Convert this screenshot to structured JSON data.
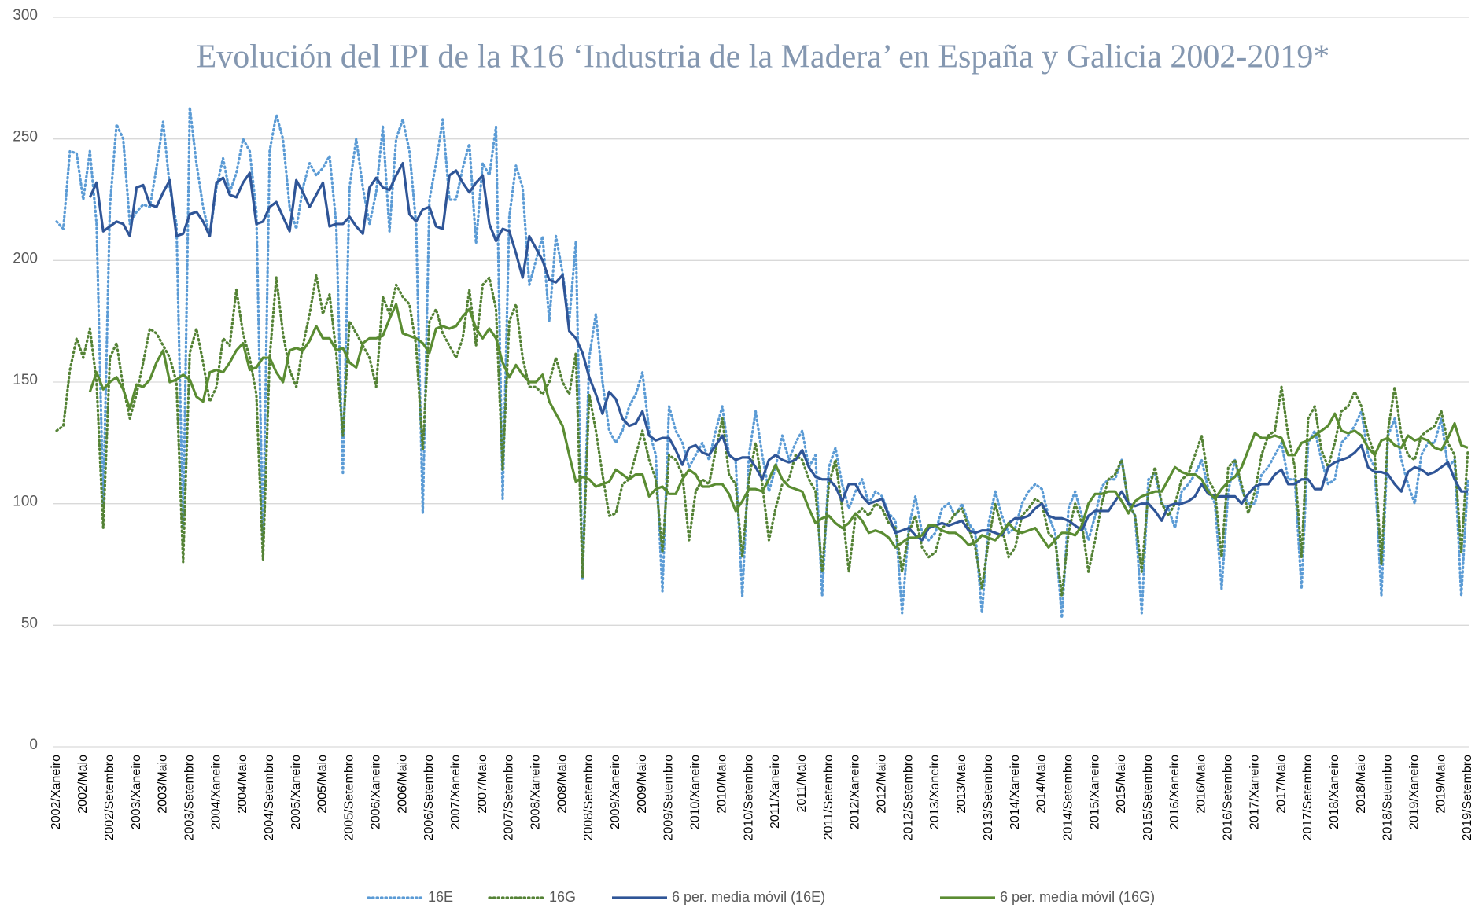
{
  "chart_data": {
    "type": "line",
    "title": "Evolución del IPI de la R16 ‘Industria de la Madera’ en España y Galicia 2002-2019*",
    "categories": [
      "2002/Xaneiro",
      null,
      null,
      null,
      "2002/Maio",
      null,
      null,
      null,
      "2002/Setembro",
      null,
      null,
      null,
      "2003/Xaneiro",
      null,
      null,
      null,
      "2003/Maio",
      null,
      null,
      null,
      "2003/Setembro",
      null,
      null,
      null,
      "2004/Xaneiro",
      null,
      null,
      null,
      "2004/Maio",
      null,
      null,
      null,
      "2004/Setembro",
      null,
      null,
      null,
      "2005/Xaneiro",
      null,
      null,
      null,
      "2005/Maio",
      null,
      null,
      null,
      "2005/Setembro",
      null,
      null,
      null,
      "2006/Xaneiro",
      null,
      null,
      null,
      "2006/Maio",
      null,
      null,
      null,
      "2006/Setembro",
      null,
      null,
      null,
      "2007/Xaneiro",
      null,
      null,
      null,
      "2007/Maio",
      null,
      null,
      null,
      "2007/Setembro",
      null,
      null,
      null,
      "2008/Xaneiro",
      null,
      null,
      null,
      "2008/Maio",
      null,
      null,
      null,
      "2008/Setembro",
      null,
      null,
      null,
      "2009/Xaneiro",
      null,
      null,
      null,
      "2009/Maio",
      null,
      null,
      null,
      "2009/Setembro",
      null,
      null,
      null,
      "2010/Xaneiro",
      null,
      null,
      null,
      "2010/Maio",
      null,
      null,
      null,
      "2010/Setembro",
      null,
      null,
      null,
      "2011/Xaneiro",
      null,
      null,
      null,
      "2011/Maio",
      null,
      null,
      null,
      "2011/Setembro",
      null,
      null,
      null,
      "2012/Xaneiro",
      null,
      null,
      null,
      "2012/Maio",
      null,
      null,
      null,
      "2012/Setembro",
      null,
      null,
      null,
      "2013/Xaneiro",
      null,
      null,
      null,
      "2013/Maio",
      null,
      null,
      null,
      "2013/Setembro",
      null,
      null,
      null,
      "2014/Xaneiro",
      null,
      null,
      null,
      "2014/Maio",
      null,
      null,
      null,
      "2014/Setembro",
      null,
      null,
      null,
      "2015/Xaneiro",
      null,
      null,
      null,
      "2015/Maio",
      null,
      null,
      null,
      "2015/Setembro",
      null,
      null,
      null,
      "2016/Xaneiro",
      null,
      null,
      null,
      "2016/Maio",
      null,
      null,
      null,
      "2016/Setembro",
      null,
      null,
      null,
      "2017/Xaneiro",
      null,
      null,
      null,
      "2017/Maio",
      null,
      null,
      null,
      "2017/Setembro",
      null,
      null,
      null,
      "2018/Xaneiro",
      null,
      null,
      null,
      "2018/Maio",
      null,
      null,
      null,
      "2018/Setembro",
      null,
      null,
      null,
      "2019/Xaneiro",
      null,
      null,
      null,
      "2019/Maio",
      null,
      null,
      null,
      "2019/Setembro"
    ],
    "series": [
      {
        "name": "16E",
        "color": "#5b9bd5",
        "style": "dotted",
        "values": [
          216,
          213,
          245,
          244,
          225,
          245,
          215,
          100,
          222,
          256,
          250,
          215,
          220,
          223,
          222,
          238,
          257,
          230,
          215,
          90,
          263,
          240,
          222,
          210,
          230,
          242,
          228,
          236,
          250,
          245,
          220,
          85,
          245,
          260,
          250,
          222,
          213,
          230,
          240,
          235,
          238,
          243,
          215,
          112,
          230,
          250,
          230,
          215,
          228,
          255,
          212,
          250,
          258,
          245,
          215,
          96,
          225,
          240,
          258,
          225,
          225,
          238,
          248,
          207,
          240,
          235,
          255,
          102,
          218,
          239,
          230,
          190,
          200,
          210,
          175,
          210,
          195,
          175,
          208,
          69,
          160,
          178,
          150,
          130,
          125,
          130,
          140,
          145,
          154,
          130,
          120,
          64,
          140,
          130,
          125,
          115,
          120,
          125,
          118,
          130,
          140,
          120,
          118,
          62,
          120,
          138,
          120,
          105,
          115,
          128,
          118,
          125,
          130,
          115,
          120,
          62,
          115,
          123,
          108,
          98,
          105,
          110,
          100,
          105,
          103,
          96,
          93,
          55,
          90,
          103,
          88,
          85,
          88,
          98,
          100,
          95,
          100,
          92,
          88,
          55,
          92,
          105,
          95,
          88,
          90,
          100,
          105,
          108,
          106,
          95,
          88,
          53,
          98,
          105,
          95,
          85,
          95,
          107,
          110,
          110,
          118,
          100,
          95,
          55,
          110,
          112,
          100,
          98,
          90,
          105,
          108,
          112,
          118,
          106,
          100,
          65,
          105,
          118,
          106,
          100,
          100,
          112,
          115,
          120,
          125,
          110,
          110,
          65,
          125,
          130,
          118,
          108,
          110,
          125,
          128,
          132,
          138,
          120,
          115,
          62,
          128,
          135,
          118,
          108,
          100,
          120,
          125,
          125,
          135,
          115,
          118,
          62,
          110
        ]
      },
      {
        "name": "16G",
        "color": "#548235",
        "style": "dotted",
        "values": [
          130,
          132,
          155,
          168,
          160,
          172,
          150,
          90,
          160,
          166,
          148,
          135,
          145,
          158,
          172,
          170,
          165,
          160,
          150,
          76,
          162,
          172,
          158,
          142,
          148,
          168,
          165,
          188,
          170,
          160,
          145,
          77,
          160,
          193,
          170,
          155,
          148,
          165,
          178,
          194,
          178,
          186,
          162,
          128,
          175,
          170,
          165,
          160,
          148,
          185,
          178,
          190,
          185,
          182,
          165,
          122,
          175,
          180,
          170,
          165,
          160,
          168,
          188,
          165,
          190,
          193,
          180,
          114,
          175,
          182,
          160,
          148,
          148,
          145,
          150,
          160,
          150,
          145,
          162,
          70,
          145,
          130,
          112,
          95,
          96,
          108,
          110,
          120,
          130,
          118,
          110,
          80,
          120,
          118,
          112,
          85,
          105,
          110,
          108,
          122,
          135,
          112,
          108,
          78,
          110,
          125,
          108,
          85,
          98,
          108,
          110,
          120,
          118,
          110,
          105,
          72,
          108,
          118,
          98,
          72,
          95,
          98,
          95,
          100,
          98,
          92,
          90,
          72,
          88,
          95,
          82,
          78,
          80,
          90,
          92,
          96,
          98,
          90,
          82,
          65,
          85,
          100,
          90,
          78,
          82,
          95,
          98,
          102,
          100,
          88,
          85,
          62,
          88,
          100,
          92,
          72,
          85,
          100,
          110,
          112,
          118,
          100,
          95,
          72,
          105,
          115,
          100,
          95,
          100,
          110,
          112,
          120,
          128,
          110,
          105,
          78,
          115,
          118,
          108,
          96,
          105,
          120,
          128,
          130,
          148,
          128,
          115,
          78,
          135,
          140,
          122,
          115,
          125,
          138,
          140,
          146,
          140,
          128,
          120,
          75,
          130,
          148,
          128,
          120,
          118,
          128,
          130,
          132,
          138,
          125,
          120,
          80,
          122
        ]
      },
      {
        "name": "6 per. media móvil (16E)",
        "color": "#2f5597",
        "style": "solid",
        "values": [
          null,
          null,
          null,
          null,
          null,
          226,
          232,
          212,
          214,
          216,
          215,
          210,
          230,
          231,
          223,
          222,
          228,
          233,
          210,
          211,
          219,
          220,
          216,
          210,
          232,
          234,
          227,
          226,
          232,
          236,
          215,
          216,
          222,
          224,
          218,
          212,
          233,
          228,
          222,
          227,
          232,
          214,
          215,
          215,
          218,
          214,
          211,
          230,
          234,
          230,
          229,
          235,
          240,
          219,
          216,
          221,
          222,
          214,
          213,
          235,
          237,
          232,
          228,
          232,
          235,
          215,
          208,
          213,
          212,
          203,
          193,
          210,
          205,
          200,
          192,
          191,
          194,
          171,
          168,
          162,
          152,
          145,
          137,
          146,
          143,
          135,
          132,
          133,
          138,
          128,
          126,
          127,
          127,
          122,
          116,
          123,
          124,
          121,
          120,
          124,
          128,
          120,
          118,
          119,
          119,
          115,
          110,
          118,
          120,
          118,
          117,
          118,
          122,
          115,
          111,
          110,
          110,
          107,
          101,
          108,
          108,
          103,
          100,
          101,
          102,
          95,
          88,
          89,
          90,
          87,
          85,
          90,
          91,
          92,
          91,
          92,
          93,
          89,
          88,
          89,
          89,
          88,
          87,
          92,
          94,
          94,
          95,
          98,
          100,
          95,
          94,
          94,
          93,
          91,
          89,
          95,
          97,
          97,
          97,
          101,
          105,
          100,
          99,
          100,
          100,
          97,
          93,
          99,
          100,
          100,
          101,
          103,
          108,
          104,
          103,
          103,
          103,
          103,
          100,
          104,
          107,
          108,
          108,
          112,
          114,
          108,
          108,
          110,
          110,
          106,
          106,
          115,
          117,
          118,
          119,
          121,
          124,
          115,
          113,
          113,
          112,
          108,
          105,
          113,
          115,
          114,
          112,
          113,
          115,
          117,
          110,
          105,
          105
        ]
      },
      {
        "name": "6 per. media móvil (16G)",
        "color": "#5a8c32",
        "style": "solid",
        "values": [
          null,
          null,
          null,
          null,
          null,
          146,
          154,
          147,
          150,
          152,
          147,
          139,
          149,
          148,
          151,
          158,
          163,
          150,
          151,
          153,
          151,
          144,
          142,
          154,
          155,
          154,
          158,
          163,
          166,
          155,
          156,
          160,
          160,
          154,
          150,
          163,
          164,
          163,
          167,
          173,
          168,
          168,
          163,
          164,
          158,
          156,
          166,
          168,
          168,
          169,
          176,
          182,
          170,
          169,
          168,
          166,
          162,
          172,
          173,
          172,
          173,
          177,
          180,
          172,
          168,
          172,
          168,
          158,
          152,
          157,
          153,
          150,
          150,
          153,
          142,
          137,
          132,
          120,
          109,
          111,
          110,
          107,
          108,
          109,
          114,
          112,
          110,
          112,
          112,
          103,
          106,
          107,
          104,
          104,
          110,
          114,
          112,
          107,
          107,
          108,
          108,
          104,
          97,
          101,
          106,
          106,
          105,
          110,
          116,
          110,
          107,
          106,
          105,
          98,
          92,
          94,
          95,
          92,
          90,
          92,
          96,
          93,
          88,
          89,
          88,
          86,
          82,
          84,
          86,
          86,
          87,
          91,
          91,
          89,
          88,
          88,
          86,
          83,
          84,
          87,
          86,
          85,
          88,
          92,
          89,
          88,
          89,
          90,
          86,
          82,
          85,
          88,
          88,
          87,
          91,
          100,
          104,
          104,
          105,
          105,
          101,
          96,
          101,
          103,
          104,
          105,
          105,
          110,
          115,
          113,
          112,
          112,
          110,
          105,
          102,
          106,
          109,
          111,
          115,
          122,
          129,
          127,
          127,
          128,
          127,
          120,
          120,
          125,
          126,
          128,
          130,
          132,
          137,
          130,
          129,
          130,
          128,
          123,
          120,
          126,
          127,
          124,
          123,
          128,
          126,
          127,
          126,
          123,
          122,
          127,
          133,
          124,
          123
        ]
      }
    ],
    "ylim": [
      0,
      300
    ],
    "yticks": [
      0,
      50,
      100,
      150,
      200,
      250,
      300
    ],
    "grid": true,
    "legend": "bottom"
  }
}
